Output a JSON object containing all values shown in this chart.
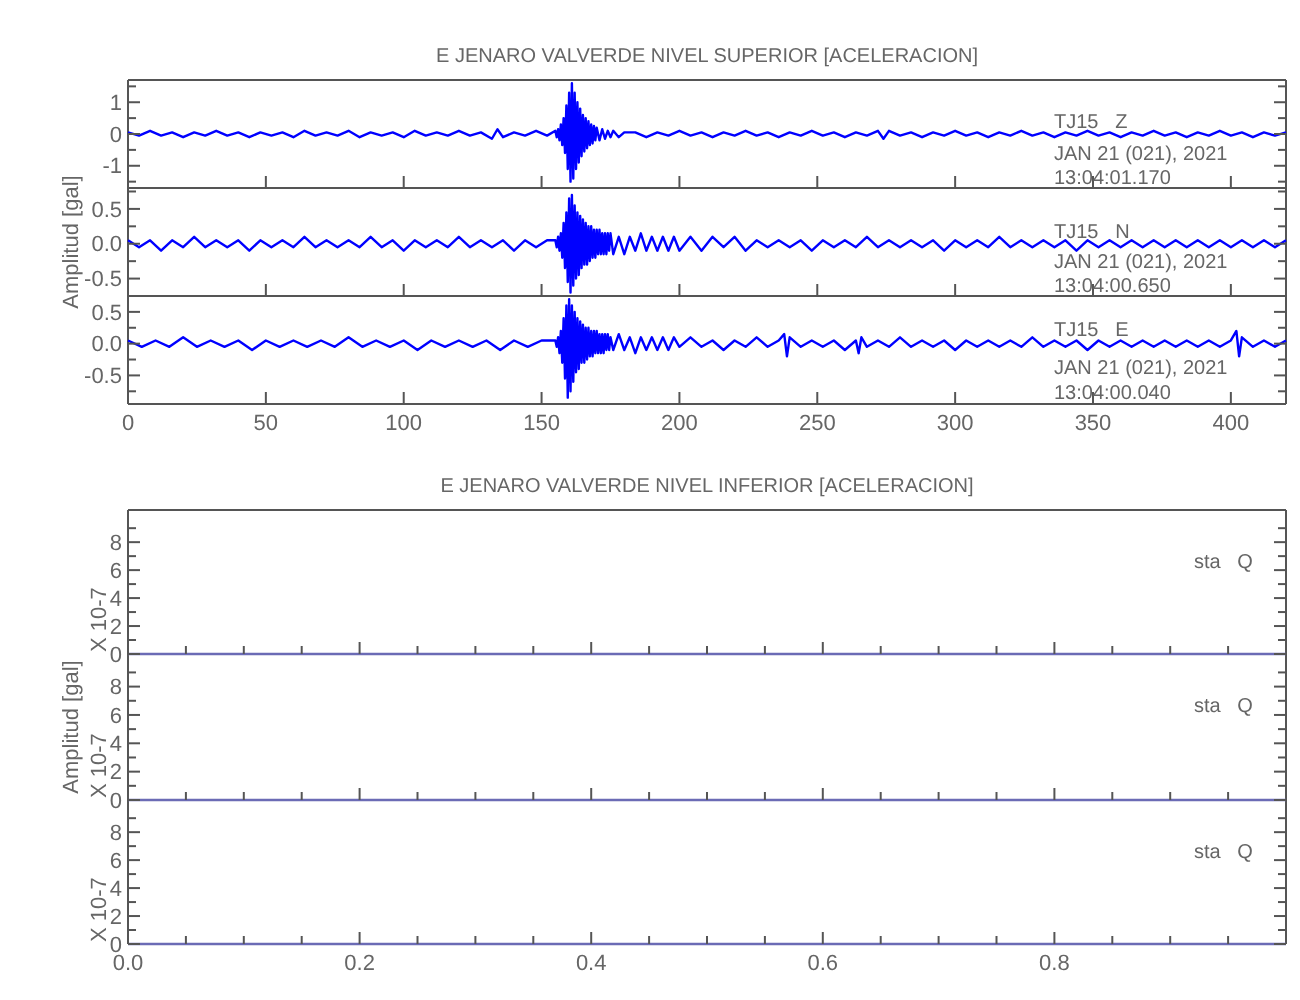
{
  "chart_data": [
    {
      "type": "line",
      "title": "E JENARO VALVERDE NIVEL SUPERIOR [ACELERACION]",
      "xlim": [
        0,
        420
      ],
      "xticks": [
        0,
        50,
        100,
        150,
        200,
        250,
        300,
        350,
        400
      ],
      "ylim": [
        -1.7,
        1.7
      ],
      "yticks": [
        {
          "value": -1.5,
          "label": null
        },
        -1,
        {
          "value": -0.5,
          "label": null
        },
        0,
        {
          "value": 0.5,
          "label": null
        },
        1,
        {
          "value": 1.5,
          "label": null
        }
      ],
      "tick_labels": "y",
      "annotations": [
        "TJ15   Z",
        "JAN 21 (021), 2021",
        "13:04:01.170"
      ],
      "color": "#0000ff",
      "x": [
        0,
        4,
        8,
        12,
        16,
        20,
        24,
        28,
        32,
        36,
        40,
        44,
        48,
        52,
        56,
        60,
        64,
        68,
        72,
        76,
        80,
        84,
        88,
        92,
        96,
        100,
        104,
        108,
        112,
        116,
        120,
        124,
        128,
        132,
        134,
        136,
        140,
        144,
        148,
        152,
        155,
        155.5,
        156,
        156.5,
        157,
        157.5,
        158,
        158.5,
        159,
        159.5,
        160,
        160.5,
        161,
        161.5,
        162,
        162.5,
        163,
        163.5,
        164,
        164.5,
        165,
        165.5,
        166,
        166.5,
        167,
        167.5,
        168,
        168.5,
        169,
        169.5,
        170,
        171,
        172,
        173,
        174,
        175,
        176,
        178,
        180,
        184,
        188,
        192,
        196,
        200,
        204,
        208,
        212,
        216,
        220,
        224,
        228,
        232,
        236,
        240,
        244,
        248,
        252,
        256,
        260,
        264,
        268,
        272,
        274,
        276,
        280,
        284,
        288,
        292,
        296,
        300,
        304,
        308,
        312,
        316,
        320,
        324,
        328,
        332,
        336,
        340,
        344,
        348,
        352,
        356,
        360,
        364,
        368,
        372,
        376,
        380,
        384,
        388,
        392,
        396,
        400,
        404,
        408,
        412,
        416,
        420
      ],
      "values": [
        0.05,
        -0.05,
        0.1,
        -0.05,
        0.05,
        -0.1,
        0.05,
        -0.05,
        0.1,
        -0.05,
        0.05,
        -0.1,
        0.05,
        -0.05,
        0.05,
        -0.1,
        0.1,
        -0.05,
        0.05,
        -0.05,
        0.1,
        -0.1,
        0.05,
        -0.05,
        0.05,
        -0.1,
        0.1,
        -0.05,
        0.05,
        -0.05,
        0.1,
        -0.05,
        0.05,
        -0.15,
        0.15,
        -0.1,
        0.05,
        -0.05,
        0.1,
        -0.05,
        0.1,
        -0.1,
        0.15,
        -0.2,
        0.3,
        -0.35,
        0.5,
        -0.6,
        0.9,
        -1.1,
        1.3,
        -1.5,
        1.6,
        -1.4,
        1.3,
        -1.1,
        1,
        -0.9,
        0.8,
        -0.7,
        0.6,
        -0.55,
        0.5,
        -0.45,
        0.4,
        -0.35,
        0.3,
        -0.3,
        0.25,
        -0.2,
        0.2,
        -0.2,
        0.15,
        -0.15,
        0.1,
        -0.1,
        0.1,
        -0.1,
        0.05,
        0.05,
        -0.1,
        0.05,
        -0.05,
        0.1,
        -0.05,
        0.05,
        -0.1,
        0.05,
        -0.05,
        0.1,
        -0.05,
        0.05,
        -0.1,
        0.05,
        -0.05,
        0.1,
        -0.05,
        0.05,
        -0.1,
        0.05,
        -0.05,
        0.1,
        -0.15,
        0.1,
        -0.05,
        0.05,
        -0.1,
        0.05,
        -0.05,
        0.1,
        -0.05,
        0.05,
        -0.1,
        0.05,
        -0.05,
        0.1,
        -0.05,
        0.05,
        -0.1,
        0.05,
        -0.05,
        0.1,
        -0.05,
        0.05,
        -0.1,
        0.05,
        -0.05,
        0.1,
        -0.05,
        0.05,
        -0.1,
        0.05,
        -0.05,
        0.1,
        -0.05,
        0.05,
        -0.1,
        0.05,
        -0.05,
        0.05
      ]
    },
    {
      "type": "line",
      "ylabel": "Amplitud [gal]",
      "xlim": [
        0,
        420
      ],
      "xticks": [
        0,
        50,
        100,
        150,
        200,
        250,
        300,
        350,
        400
      ],
      "ylim": [
        -0.75,
        0.8
      ],
      "yticks": [
        -0.5,
        {
          "value": -0.25,
          "label": null
        },
        {
          "value": 0,
          "label": "0.0"
        },
        {
          "value": 0.25,
          "label": null
        },
        0.5,
        {
          "value": 0.75,
          "label": null
        }
      ],
      "tick_labels": "y",
      "annotations": [
        "TJ15   N",
        "JAN 21 (021), 2021",
        "13:04:00.650"
      ],
      "color": "#0000ff",
      "x": [
        0,
        4,
        8,
        12,
        16,
        20,
        24,
        28,
        32,
        36,
        40,
        44,
        48,
        52,
        56,
        60,
        64,
        68,
        72,
        76,
        80,
        84,
        88,
        92,
        96,
        100,
        104,
        108,
        112,
        116,
        120,
        124,
        128,
        132,
        136,
        140,
        144,
        148,
        152,
        155,
        155.5,
        156,
        156.5,
        157,
        157.5,
        158,
        158.5,
        159,
        159.5,
        160,
        160.5,
        161,
        161.5,
        162,
        162.5,
        163,
        163.5,
        164,
        164.5,
        165,
        165.5,
        166,
        166.5,
        167,
        167.5,
        168,
        168.5,
        169,
        169.5,
        170,
        170.5,
        171,
        171.5,
        172,
        172.5,
        173,
        173.5,
        174,
        174.5,
        175,
        176,
        178,
        180,
        182,
        184,
        186,
        188,
        190,
        192,
        194,
        196,
        198,
        200,
        204,
        208,
        212,
        216,
        220,
        224,
        228,
        232,
        236,
        240,
        244,
        248,
        252,
        256,
        260,
        264,
        268,
        272,
        276,
        280,
        284,
        288,
        292,
        296,
        300,
        304,
        308,
        312,
        316,
        320,
        324,
        328,
        332,
        336,
        340,
        344,
        348,
        352,
        356,
        360,
        364,
        368,
        372,
        376,
        380,
        384,
        388,
        392,
        396,
        400,
        404,
        408,
        412,
        416,
        420
      ],
      "values": [
        0.05,
        -0.05,
        0.05,
        -0.1,
        0.05,
        -0.05,
        0.1,
        -0.05,
        0.05,
        -0.05,
        0.05,
        -0.1,
        0.05,
        -0.05,
        0.05,
        -0.05,
        0.1,
        -0.05,
        0.05,
        -0.05,
        0.05,
        -0.05,
        0.1,
        -0.05,
        0.05,
        -0.1,
        0.05,
        -0.05,
        0.05,
        -0.05,
        0.1,
        -0.05,
        0.05,
        -0.05,
        0.05,
        -0.1,
        0.05,
        -0.05,
        0.05,
        0.05,
        -0.05,
        0.1,
        -0.1,
        0.15,
        -0.2,
        0.3,
        -0.35,
        0.45,
        -0.55,
        0.65,
        -0.7,
        0.7,
        -0.6,
        0.55,
        -0.5,
        0.45,
        -0.45,
        0.4,
        -0.35,
        0.35,
        -0.3,
        0.3,
        -0.3,
        0.25,
        -0.25,
        0.25,
        -0.2,
        0.2,
        -0.2,
        0.2,
        -0.15,
        0.2,
        -0.15,
        0.15,
        -0.15,
        0.15,
        -0.15,
        0.15,
        -0.1,
        0.15,
        -0.15,
        0.1,
        -0.15,
        0.1,
        -0.1,
        0.15,
        -0.1,
        0.1,
        -0.1,
        0.1,
        -0.1,
        0.1,
        -0.1,
        0.1,
        -0.1,
        0.1,
        -0.05,
        0.1,
        -0.1,
        0.05,
        -0.05,
        0.05,
        -0.05,
        0.05,
        -0.1,
        0.05,
        -0.05,
        0.05,
        -0.05,
        0.1,
        -0.05,
        0.05,
        -0.05,
        0.05,
        -0.05,
        0.05,
        -0.1,
        0.05,
        -0.05,
        0.05,
        -0.05,
        0.1,
        -0.05,
        0.05,
        -0.05,
        0.05,
        -0.05,
        0.05,
        -0.1,
        0.05,
        -0.05,
        0.05,
        -0.05,
        0.05,
        -0.05,
        0.05,
        -0.05,
        0.05,
        -0.05,
        0.05,
        -0.05,
        0.05,
        -0.05,
        0.05,
        -0.05,
        0.05,
        -0.05,
        0.05
      ]
    },
    {
      "type": "line",
      "xlim": [
        0,
        420
      ],
      "xticks": [
        0,
        50,
        100,
        150,
        200,
        250,
        300,
        350,
        400
      ],
      "ylim": [
        -0.95,
        0.75
      ],
      "yticks": [
        {
          "value": -0.75,
          "label": null
        },
        -0.5,
        {
          "value": -0.25,
          "label": null
        },
        {
          "value": 0,
          "label": "0.0"
        },
        {
          "value": 0.25,
          "label": null
        },
        0.5
      ],
      "annotations": [
        "TJ15   E",
        "JAN 21 (021), 2021",
        "13:04:00.040"
      ],
      "color": "#0000ff",
      "x": [
        0,
        5,
        10,
        15,
        20,
        25,
        30,
        35,
        40,
        45,
        50,
        55,
        60,
        65,
        70,
        75,
        80,
        85,
        90,
        95,
        100,
        105,
        110,
        115,
        120,
        125,
        130,
        135,
        140,
        145,
        150,
        155,
        155.5,
        156,
        156.5,
        157,
        157.5,
        158,
        158.5,
        159,
        159.5,
        160,
        160.5,
        161,
        161.5,
        162,
        162.5,
        163,
        163.5,
        164,
        164.5,
        165,
        165.5,
        166,
        166.5,
        167,
        167.5,
        168,
        168.5,
        169,
        169.5,
        170,
        170.5,
        171,
        171.5,
        172,
        172.5,
        173,
        173.5,
        174,
        174.5,
        175,
        176,
        178,
        180,
        182,
        184,
        186,
        188,
        190,
        192,
        194,
        196,
        198,
        200,
        204,
        208,
        212,
        216,
        220,
        224,
        228,
        232,
        236,
        238,
        239,
        240,
        244,
        248,
        252,
        256,
        260,
        264,
        265,
        266,
        268,
        272,
        276,
        280,
        284,
        288,
        292,
        296,
        300,
        304,
        308,
        312,
        316,
        320,
        324,
        328,
        332,
        336,
        340,
        344,
        348,
        352,
        356,
        360,
        364,
        368,
        372,
        376,
        380,
        384,
        388,
        392,
        396,
        400,
        402,
        403,
        404,
        408,
        412,
        416,
        420
      ],
      "values": [
        0.05,
        -0.05,
        0.05,
        -0.05,
        0.1,
        -0.05,
        0.05,
        -0.05,
        0.05,
        -0.1,
        0.05,
        -0.05,
        0.05,
        -0.05,
        0.05,
        -0.05,
        0.1,
        -0.05,
        0.05,
        -0.05,
        0.05,
        -0.1,
        0.05,
        -0.05,
        0.05,
        -0.05,
        0.05,
        -0.1,
        0.05,
        -0.05,
        0.05,
        0.05,
        -0.05,
        0.1,
        -0.15,
        0.2,
        -0.3,
        0.4,
        -0.55,
        0.6,
        -0.85,
        0.7,
        -0.75,
        0.6,
        -0.6,
        0.5,
        -0.45,
        0.4,
        -0.4,
        0.35,
        -0.3,
        0.3,
        -0.3,
        0.25,
        -0.25,
        0.25,
        -0.2,
        0.2,
        -0.2,
        0.2,
        -0.15,
        0.2,
        -0.15,
        0.15,
        -0.15,
        0.15,
        -0.15,
        0.15,
        -0.1,
        0.15,
        -0.1,
        0.1,
        -0.1,
        0.15,
        -0.1,
        0.1,
        -0.15,
        0.1,
        -0.1,
        0.1,
        -0.1,
        0.1,
        -0.1,
        0.1,
        -0.05,
        0.1,
        -0.05,
        0.05,
        -0.1,
        0.05,
        -0.05,
        0.1,
        -0.05,
        0.05,
        0.15,
        -0.2,
        0.1,
        -0.05,
        0.05,
        -0.05,
        0.05,
        -0.1,
        0.05,
        -0.15,
        0.1,
        -0.05,
        0.05,
        -0.05,
        0.1,
        -0.05,
        0.05,
        -0.05,
        0.05,
        -0.1,
        0.05,
        -0.05,
        0.05,
        -0.05,
        0.05,
        -0.05,
        0.1,
        -0.05,
        0.05,
        -0.05,
        0.05,
        -0.1,
        0.05,
        -0.05,
        0.05,
        -0.05,
        0.05,
        -0.05,
        0.05,
        -0.05,
        0.05,
        -0.05,
        0.05,
        -0.05,
        0.05,
        0.2,
        -0.2,
        0.1,
        -0.05,
        0.05,
        -0.05,
        0.05
      ]
    },
    {
      "type": "line",
      "title": "E JENARO VALVERDE NIVEL INFERIOR [ACELERACION]",
      "xlim": [
        0,
        1
      ],
      "xticks": [
        0,
        {
          "value": 0.05,
          "label": null
        },
        {
          "value": 0.1,
          "label": null
        },
        {
          "value": 0.15,
          "label": null
        },
        0.2,
        {
          "value": 0.25,
          "label": null
        },
        {
          "value": 0.3,
          "label": null
        },
        {
          "value": 0.35,
          "label": null
        },
        0.4,
        {
          "value": 0.45,
          "label": null
        },
        {
          "value": 0.5,
          "label": null
        },
        {
          "value": 0.55,
          "label": null
        },
        0.6,
        {
          "value": 0.65,
          "label": null
        },
        {
          "value": 0.7,
          "label": null
        },
        {
          "value": 0.75,
          "label": null
        },
        0.8,
        {
          "value": 0.85,
          "label": null
        },
        {
          "value": 0.9,
          "label": null
        },
        {
          "value": 0.95,
          "label": null
        }
      ],
      "ylim": [
        0,
        10.3
      ],
      "yticks": [
        0,
        {
          "value": 1,
          "label": null
        },
        2,
        {
          "value": 3,
          "label": null
        },
        4,
        {
          "value": 5,
          "label": null
        },
        6,
        {
          "value": 7,
          "label": null
        },
        8,
        {
          "value": 9,
          "label": null
        }
      ],
      "tick_labels": "y",
      "annotations": [
        "sta   Q",
        "X 10-7"
      ],
      "color": "#6b6bb5",
      "x": [
        0,
        1
      ],
      "values": [
        0,
        0
      ]
    },
    {
      "type": "line",
      "ylabel": "Amplitud [gal]",
      "xlim": [
        0,
        1
      ],
      "xticks": [
        0,
        {
          "value": 0.05,
          "label": null
        },
        {
          "value": 0.1,
          "label": null
        },
        {
          "value": 0.15,
          "label": null
        },
        0.2,
        {
          "value": 0.25,
          "label": null
        },
        {
          "value": 0.3,
          "label": null
        },
        {
          "value": 0.35,
          "label": null
        },
        0.4,
        {
          "value": 0.45,
          "label": null
        },
        {
          "value": 0.5,
          "label": null
        },
        {
          "value": 0.55,
          "label": null
        },
        0.6,
        {
          "value": 0.65,
          "label": null
        },
        {
          "value": 0.7,
          "label": null
        },
        {
          "value": 0.75,
          "label": null
        },
        0.8,
        {
          "value": 0.85,
          "label": null
        },
        {
          "value": 0.9,
          "label": null
        },
        {
          "value": 0.95,
          "label": null
        }
      ],
      "ylim": [
        0,
        10.3
      ],
      "yticks": [
        0,
        {
          "value": 1,
          "label": null
        },
        2,
        {
          "value": 3,
          "label": null
        },
        4,
        {
          "value": 5,
          "label": null
        },
        6,
        {
          "value": 7,
          "label": null
        },
        8,
        {
          "value": 9,
          "label": null
        }
      ],
      "tick_labels": "y",
      "annotations": [
        "sta   Q",
        "X 10-7"
      ],
      "color": "#6b6bb5",
      "x": [
        0,
        1
      ],
      "values": [
        0,
        0
      ]
    },
    {
      "type": "line",
      "xlim": [
        0,
        1
      ],
      "xticks": [
        {
          "value": 0,
          "label": "0.0"
        },
        {
          "value": 0.05,
          "label": null
        },
        {
          "value": 0.1,
          "label": null
        },
        {
          "value": 0.15,
          "label": null
        },
        0.2,
        {
          "value": 0.25,
          "label": null
        },
        {
          "value": 0.3,
          "label": null
        },
        {
          "value": 0.35,
          "label": null
        },
        0.4,
        {
          "value": 0.45,
          "label": null
        },
        {
          "value": 0.5,
          "label": null
        },
        {
          "value": 0.55,
          "label": null
        },
        0.6,
        {
          "value": 0.65,
          "label": null
        },
        {
          "value": 0.7,
          "label": null
        },
        {
          "value": 0.75,
          "label": null
        },
        0.8,
        {
          "value": 0.85,
          "label": null
        },
        {
          "value": 0.9,
          "label": null
        },
        {
          "value": 0.95,
          "label": null
        }
      ],
      "ylim": [
        0,
        10.3
      ],
      "yticks": [
        0,
        {
          "value": 1,
          "label": null
        },
        2,
        {
          "value": 3,
          "label": null
        },
        4,
        {
          "value": 5,
          "label": null
        },
        6,
        {
          "value": 7,
          "label": null
        },
        8,
        {
          "value": 9,
          "label": null
        }
      ],
      "annotations": [
        "sta   Q",
        "X 10-7"
      ],
      "color": "#6b6bb5",
      "x": [
        0,
        1
      ],
      "values": [
        0,
        0
      ]
    }
  ]
}
